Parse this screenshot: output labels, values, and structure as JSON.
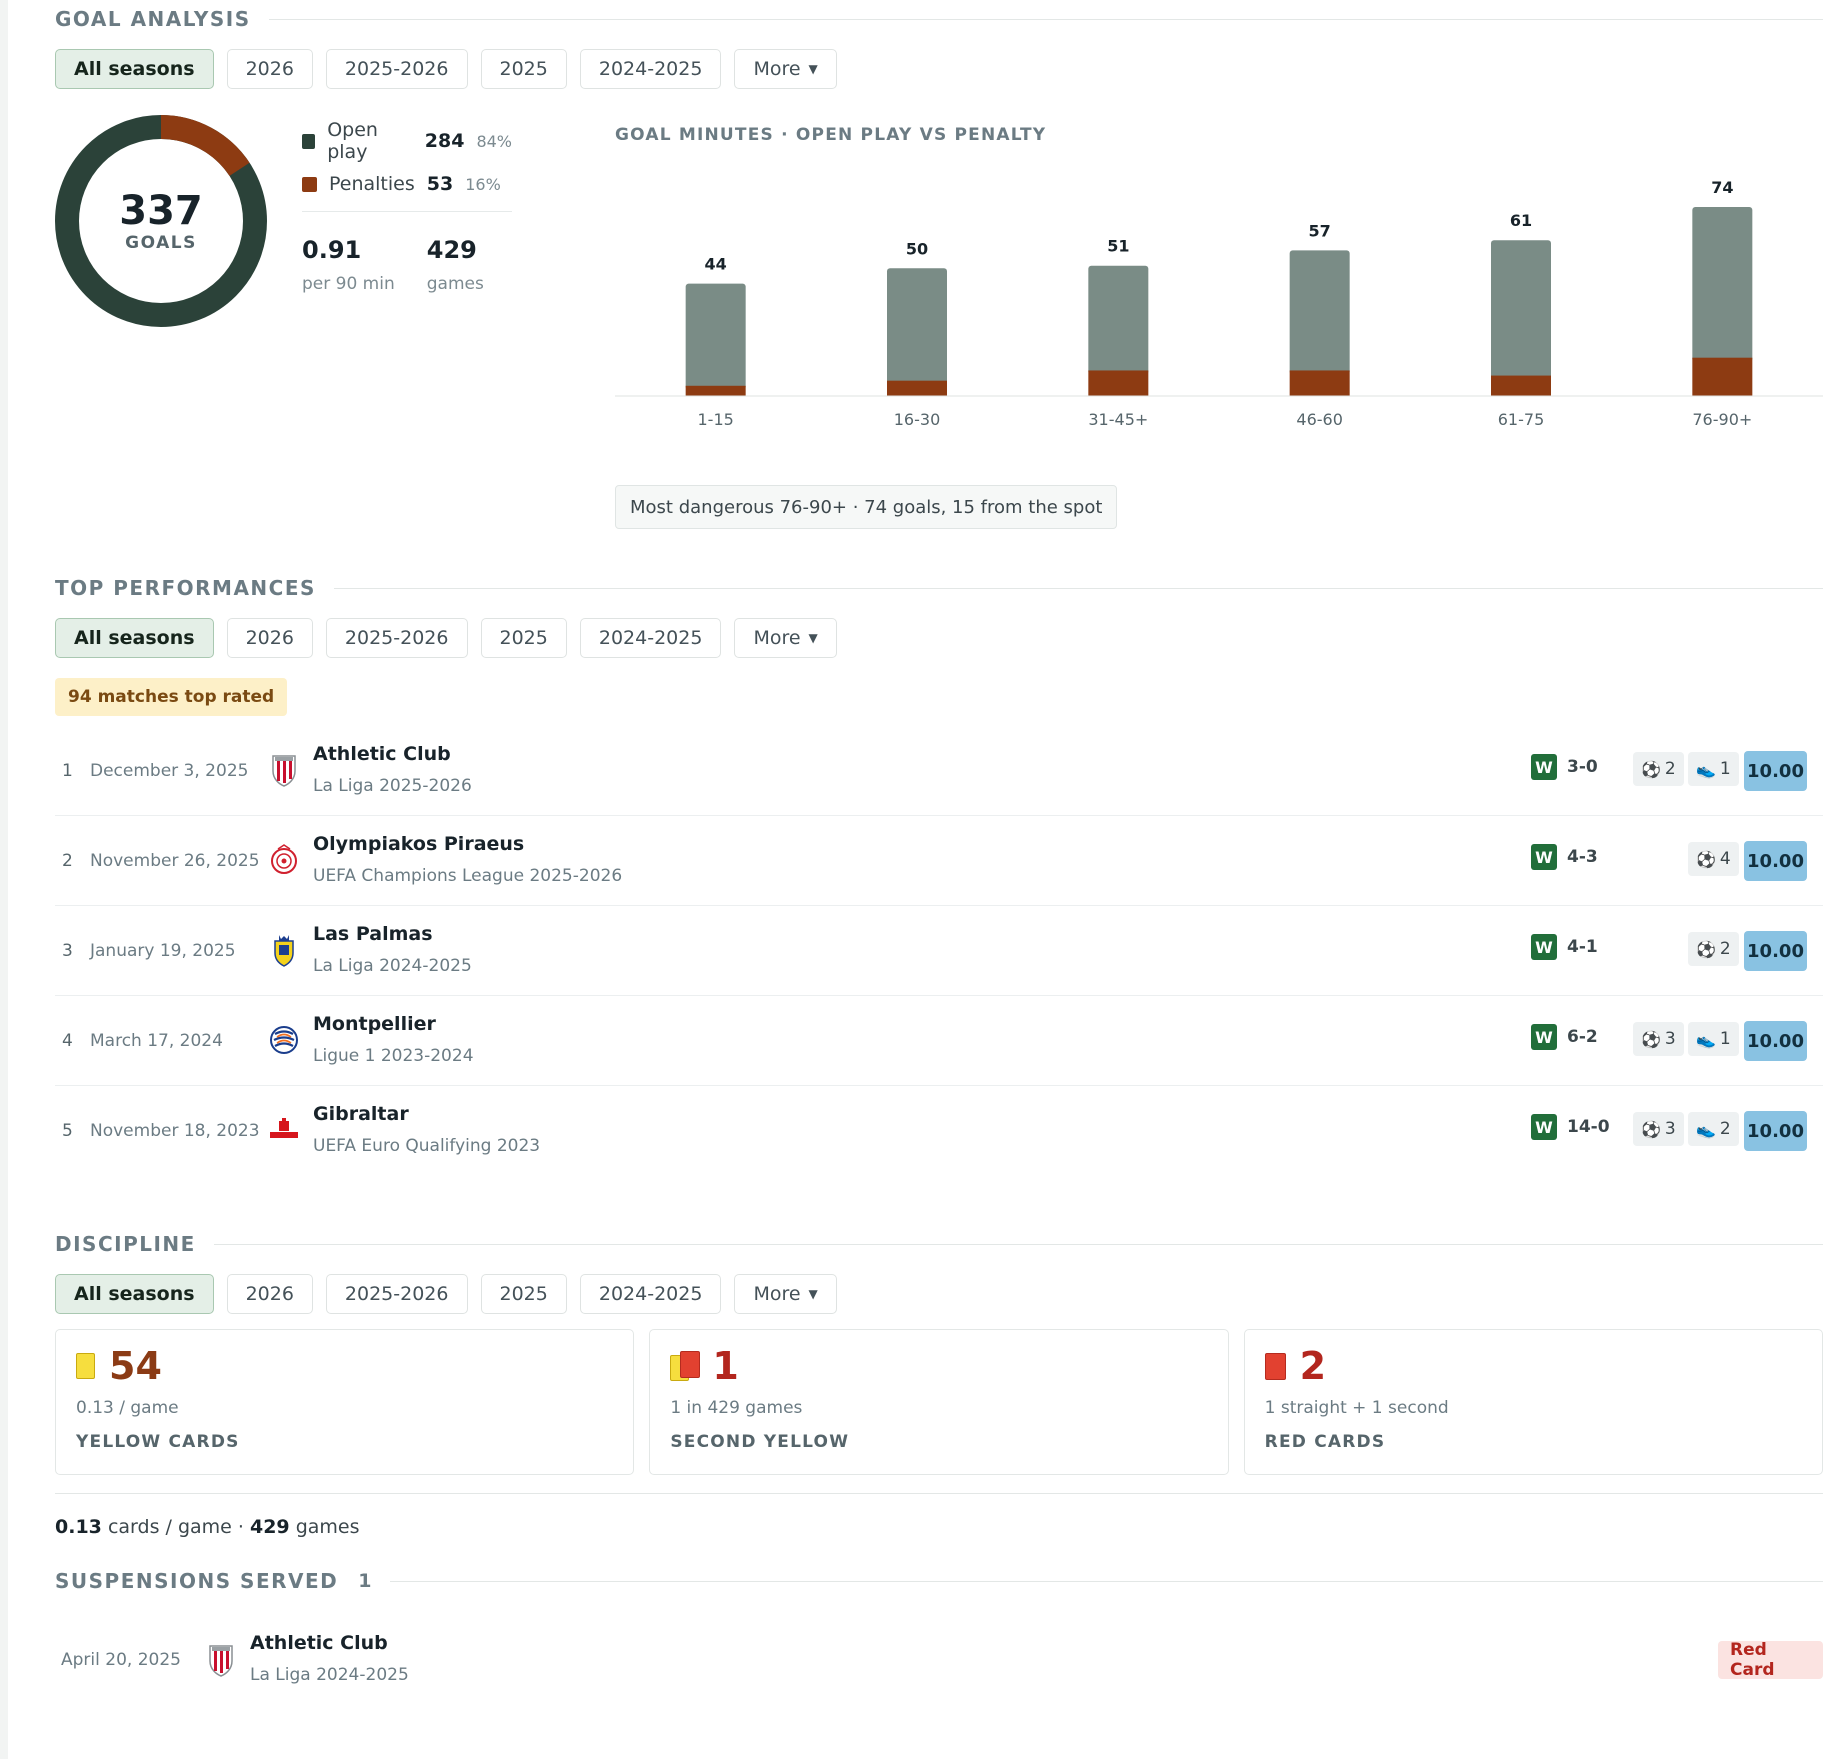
{
  "filters": [
    "All seasons",
    "2026",
    "2025-2026",
    "2025",
    "2024-2025"
  ],
  "filters_more": "More",
  "goal_analysis": {
    "title": "GOAL ANALYSIS",
    "total": "337",
    "total_label": "GOALS",
    "open_play": {
      "label": "Open play",
      "count": "284",
      "pct": "84%",
      "color": "#2b4239"
    },
    "penalties": {
      "label": "Penalties",
      "count": "53",
      "pct": "16%",
      "color": "#8d3b12"
    },
    "per90": {
      "value": "0.91",
      "label": "per 90 min"
    },
    "games": {
      "value": "429",
      "label": "games"
    },
    "chart_title": "GOAL MINUTES · OPEN PLAY VS PENALTY",
    "note": "Most dangerous 76-90+ · 74 goals, 15 from the spot"
  },
  "chart_data": {
    "type": "bar",
    "stacked": true,
    "title": "GOAL MINUTES · OPEN PLAY VS PENALTY",
    "categories": [
      "1-15",
      "16-30",
      "31-45+",
      "46-60",
      "61-75",
      "76-90+"
    ],
    "totals": [
      44,
      50,
      51,
      57,
      61,
      74
    ],
    "series": [
      {
        "name": "Open play",
        "color": "#7a8c86",
        "values": [
          40,
          44,
          41,
          47,
          53,
          59
        ]
      },
      {
        "name": "Penalties",
        "color": "#8d3b12",
        "values": [
          4,
          6,
          10,
          10,
          8,
          15
        ]
      }
    ],
    "ylim": [
      0,
      74
    ],
    "grid": false
  },
  "top_performances": {
    "title": "TOP PERFORMANCES",
    "badge_count": "94",
    "badge_text": "matches top rated",
    "rows": [
      {
        "rank": "1",
        "date": "December 3, 2025",
        "team": "Athletic Club",
        "competition": "La Liga 2025-2026",
        "result": "W",
        "score": "3-0",
        "goals": "2",
        "assists": "1",
        "rating": "10.00",
        "crest": "athletic"
      },
      {
        "rank": "2",
        "date": "November 26, 2025",
        "team": "Olympiakos Piraeus",
        "competition": "UEFA Champions League 2025-2026",
        "result": "W",
        "score": "4-3",
        "goals": "4",
        "assists": "",
        "rating": "10.00",
        "crest": "olympiakos"
      },
      {
        "rank": "3",
        "date": "January 19, 2025",
        "team": "Las Palmas",
        "competition": "La Liga 2024-2025",
        "result": "W",
        "score": "4-1",
        "goals": "2",
        "assists": "",
        "rating": "10.00",
        "crest": "laspalmas"
      },
      {
        "rank": "4",
        "date": "March 17, 2024",
        "team": "Montpellier",
        "competition": "Ligue 1 2023-2024",
        "result": "W",
        "score": "6-2",
        "goals": "3",
        "assists": "1",
        "rating": "10.00",
        "crest": "montpellier"
      },
      {
        "rank": "5",
        "date": "November 18, 2023",
        "team": "Gibraltar",
        "competition": "UEFA Euro Qualifying 2023",
        "result": "W",
        "score": "14-0",
        "goals": "3",
        "assists": "2",
        "rating": "10.00",
        "crest": "gibraltar"
      }
    ]
  },
  "discipline": {
    "title": "DISCIPLINE",
    "yellow": {
      "count": "54",
      "sub": "0.13 / game",
      "label": "YELLOW CARDS"
    },
    "second_yellow": {
      "count": "1",
      "sub": "1 in 429 games",
      "label": "SECOND YELLOW"
    },
    "red": {
      "count": "2",
      "sub": "1 straight + 1 second",
      "label": "RED CARDS"
    },
    "summary_rate": "0.13",
    "summary_rate_text": "cards / game ·",
    "summary_games": "429",
    "summary_games_text": "games"
  },
  "suspensions": {
    "title": "SUSPENSIONS SERVED",
    "count": "1",
    "rows": [
      {
        "date": "April 20, 2025",
        "team": "Athletic Club",
        "competition": "La Liga 2024-2025",
        "reason": "Red Card"
      }
    ]
  }
}
